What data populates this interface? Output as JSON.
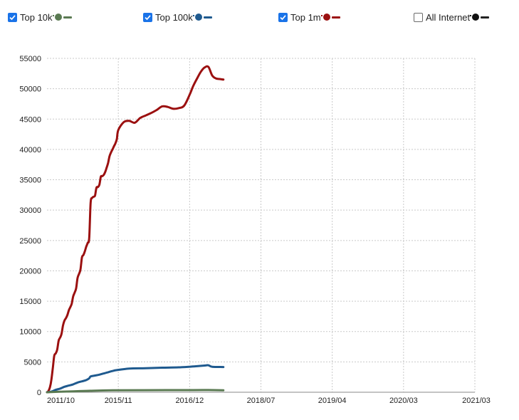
{
  "legend": {
    "items": [
      {
        "label": "Top 10k",
        "checked": true,
        "color": "#5a7a52"
      },
      {
        "label": "Top 100k",
        "checked": true,
        "color": "#1f5a8f"
      },
      {
        "label": "Top 1m",
        "checked": true,
        "color": "#9b1010"
      },
      {
        "label": "All Internet",
        "checked": false,
        "color": "#222222"
      }
    ]
  },
  "chart_data": {
    "type": "line",
    "title": "",
    "xlabel": "",
    "ylabel": "",
    "ylim": [
      0,
      55000
    ],
    "yticks": [
      0,
      5000,
      10000,
      15000,
      20000,
      25000,
      30000,
      35000,
      40000,
      45000,
      50000,
      55000
    ],
    "xlim": [
      "2011-10",
      "2021-03"
    ],
    "xticks": [
      "2011/10",
      "2015/11",
      "2016/12",
      "2018/07",
      "2019/04",
      "2020/03",
      "2021/03"
    ],
    "grid": true,
    "legend_position": "top",
    "series": [
      {
        "name": "Top 1m",
        "color": "#9b1010",
        "points": [
          [
            "2011-10",
            0
          ],
          [
            "2011-11",
            200
          ],
          [
            "2011-12",
            800
          ],
          [
            "2012-01",
            2000
          ],
          [
            "2012-02",
            4000
          ],
          [
            "2012-03",
            6000
          ],
          [
            "2012-04",
            6400
          ],
          [
            "2012-05",
            7000
          ],
          [
            "2012-06",
            8500
          ],
          [
            "2012-07",
            9000
          ],
          [
            "2012-08",
            9600
          ],
          [
            "2012-09",
            11000
          ],
          [
            "2012-10",
            11800
          ],
          [
            "2012-11",
            12200
          ],
          [
            "2012-12",
            12700
          ],
          [
            "2013-01",
            13500
          ],
          [
            "2013-02",
            14000
          ],
          [
            "2013-03",
            14600
          ],
          [
            "2013-04",
            15800
          ],
          [
            "2013-05",
            16400
          ],
          [
            "2013-06",
            17100
          ],
          [
            "2013-07",
            18800
          ],
          [
            "2013-08",
            19500
          ],
          [
            "2013-09",
            20200
          ],
          [
            "2013-10",
            22200
          ],
          [
            "2013-11",
            22600
          ],
          [
            "2013-12",
            23200
          ],
          [
            "2014-01",
            24000
          ],
          [
            "2014-02",
            24600
          ],
          [
            "2014-03",
            25400
          ],
          [
            "2014-04",
            31200
          ],
          [
            "2014-05",
            32000
          ],
          [
            "2014-06",
            32200
          ],
          [
            "2014-07",
            32400
          ],
          [
            "2014-08",
            33700
          ],
          [
            "2014-09",
            33800
          ],
          [
            "2014-10",
            34200
          ],
          [
            "2014-11",
            35500
          ],
          [
            "2014-12",
            35600
          ],
          [
            "2015-01",
            35800
          ],
          [
            "2015-02",
            36300
          ],
          [
            "2015-03",
            37000
          ],
          [
            "2015-04",
            37800
          ],
          [
            "2015-05",
            38900
          ],
          [
            "2015-06",
            39500
          ],
          [
            "2015-07",
            40000
          ],
          [
            "2015-08",
            40500
          ],
          [
            "2015-09",
            41000
          ],
          [
            "2015-10",
            41700
          ],
          [
            "2015-11",
            43200
          ],
          [
            "2015-12",
            44500
          ],
          [
            "2016-01",
            44700
          ],
          [
            "2016-02",
            44400
          ],
          [
            "2016-03",
            45200
          ],
          [
            "2016-04",
            45600
          ],
          [
            "2016-05",
            46000
          ],
          [
            "2016-06",
            46500
          ],
          [
            "2016-07",
            47100
          ],
          [
            "2016-08",
            47000
          ],
          [
            "2016-09",
            46700
          ],
          [
            "2016-10",
            46800
          ],
          [
            "2016-11",
            47200
          ],
          [
            "2016-12",
            49000
          ],
          [
            "2017-01",
            50500
          ],
          [
            "2017-02",
            51700
          ],
          [
            "2017-03",
            52800
          ],
          [
            "2017-04",
            53500
          ],
          [
            "2017-05",
            53600
          ],
          [
            "2017-06",
            52200
          ],
          [
            "2017-07",
            51700
          ],
          [
            "2017-08",
            51600
          ],
          [
            "2017-09",
            51500
          ]
        ]
      },
      {
        "name": "Top 100k",
        "color": "#1f5a8f",
        "points": [
          [
            "2011-10",
            0
          ],
          [
            "2012-01",
            100
          ],
          [
            "2012-04",
            400
          ],
          [
            "2012-07",
            600
          ],
          [
            "2012-10",
            900
          ],
          [
            "2013-01",
            1100
          ],
          [
            "2013-04",
            1300
          ],
          [
            "2013-07",
            1600
          ],
          [
            "2013-10",
            1800
          ],
          [
            "2014-01",
            2000
          ],
          [
            "2014-03",
            2300
          ],
          [
            "2014-04",
            2600
          ],
          [
            "2014-07",
            2750
          ],
          [
            "2014-10",
            2900
          ],
          [
            "2015-01",
            3100
          ],
          [
            "2015-04",
            3300
          ],
          [
            "2015-07",
            3500
          ],
          [
            "2015-10",
            3650
          ],
          [
            "2016-01",
            3900
          ],
          [
            "2016-04",
            3950
          ],
          [
            "2016-07",
            4050
          ],
          [
            "2016-10",
            4100
          ],
          [
            "2017-01",
            4250
          ],
          [
            "2017-04",
            4400
          ],
          [
            "2017-05",
            4450
          ],
          [
            "2017-06",
            4200
          ],
          [
            "2017-09",
            4150
          ]
        ]
      },
      {
        "name": "Top 10k",
        "color": "#5a7a52",
        "points": [
          [
            "2011-10",
            0
          ],
          [
            "2012-07",
            80
          ],
          [
            "2013-04",
            150
          ],
          [
            "2014-01",
            220
          ],
          [
            "2014-10",
            280
          ],
          [
            "2015-07",
            320
          ],
          [
            "2016-04",
            340
          ],
          [
            "2017-01",
            350
          ],
          [
            "2017-05",
            360
          ],
          [
            "2017-09",
            330
          ]
        ]
      }
    ]
  }
}
